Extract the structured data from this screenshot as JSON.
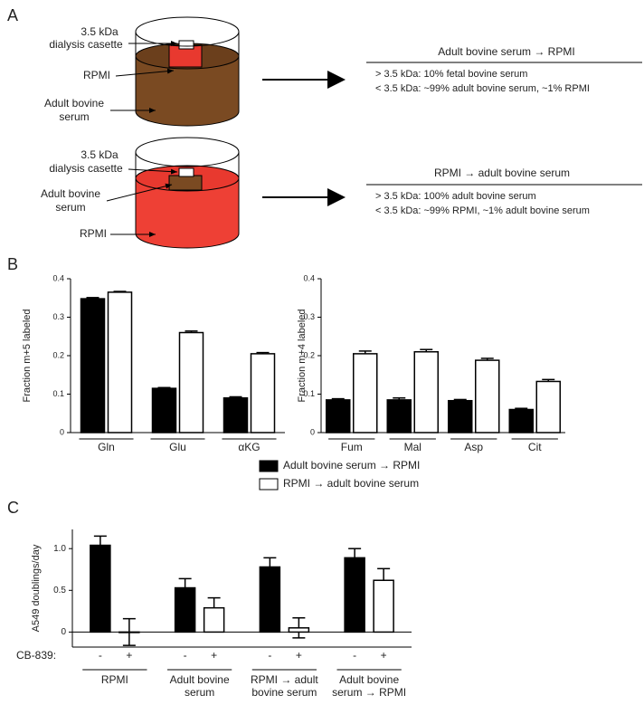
{
  "panel_labels": [
    "A",
    "B",
    "C"
  ],
  "panel_a": {
    "top": {
      "cassette_label": [
        "3.5 kDa",
        "dialysis casette"
      ],
      "inner_label": "RPMI",
      "outer_label": [
        "Adult bovine",
        "serum"
      ],
      "result_title": "Adult bovine serum → RPMI",
      "result_lines": [
        "> 3.5 kDa: 10% fetal bovine serum",
        "< 3.5 kDa: ~99% adult bovine serum, ~1% RPMI"
      ]
    },
    "bottom": {
      "cassette_label": [
        "3.5 kDa",
        "dialysis casette"
      ],
      "inner_label": [
        "Adult bovine",
        "serum"
      ],
      "outer_label": "RPMI",
      "result_title": "RPMI → adult bovine serum",
      "result_lines": [
        "> 3.5 kDa: 100% adult bovine serum",
        "< 3.5 kDa: ~99% RPMI, ~1% adult bovine serum"
      ]
    }
  },
  "legend_b": [
    "Adult bovine serum → RPMI",
    "RPMI → adult bovine serum"
  ],
  "chart_data": [
    {
      "type": "bar",
      "y_label": "Fraction m+5 labeled",
      "categories": [
        "Gln",
        "Glu",
        "αKG"
      ],
      "series": [
        {
          "name": "Adult bovine serum → RPMI",
          "color": "#000000",
          "values": [
            0.348,
            0.115,
            0.09
          ],
          "errors": [
            0.003,
            0.002,
            0.003
          ]
        },
        {
          "name": "RPMI → adult bovine serum",
          "color": "#ffffff",
          "values": [
            0.365,
            0.26,
            0.205
          ],
          "errors": [
            0.002,
            0.004,
            0.003
          ]
        }
      ],
      "ylim": [
        0,
        0.4
      ],
      "yticks": [
        0,
        0.1,
        0.2,
        0.3,
        0.4
      ]
    },
    {
      "type": "bar",
      "y_label": "Fraction m+4 labeled",
      "categories": [
        "Fum",
        "Mal",
        "Asp",
        "Cit"
      ],
      "series": [
        {
          "name": "Adult bovine serum → RPMI",
          "color": "#000000",
          "values": [
            0.085,
            0.085,
            0.083,
            0.06
          ],
          "errors": [
            0.003,
            0.005,
            0.003,
            0.003
          ]
        },
        {
          "name": "RPMI → adult bovine serum",
          "color": "#ffffff",
          "values": [
            0.205,
            0.21,
            0.188,
            0.133
          ],
          "errors": [
            0.007,
            0.006,
            0.005,
            0.005
          ]
        }
      ],
      "ylim": [
        0,
        0.4
      ],
      "yticks": [
        0,
        0.1,
        0.2,
        0.3,
        0.4
      ]
    },
    {
      "type": "bar",
      "y_label": "A549 doublings/day",
      "treatment_label": "CB-839:",
      "categories": [
        [
          "RPMI"
        ],
        [
          "Adult bovine",
          "serum"
        ],
        [
          "RPMI → adult",
          "bovine serum"
        ],
        [
          "Adult bovine",
          "serum → RPMI"
        ]
      ],
      "series": [
        {
          "name": "-",
          "color": "#000000",
          "values": [
            1.04,
            0.53,
            0.78,
            0.89
          ],
          "errors": [
            0.11,
            0.11,
            0.11,
            0.11
          ]
        },
        {
          "name": "+",
          "color": "#ffffff",
          "values": [
            0.0,
            0.29,
            0.05,
            0.62
          ],
          "errors": [
            0.16,
            0.12,
            0.12,
            0.14
          ]
        }
      ],
      "ylim": [
        -0.18,
        1.23
      ],
      "yticks": [
        0,
        0.5,
        {
          "value": 1,
          "label": "1.0"
        }
      ]
    }
  ]
}
